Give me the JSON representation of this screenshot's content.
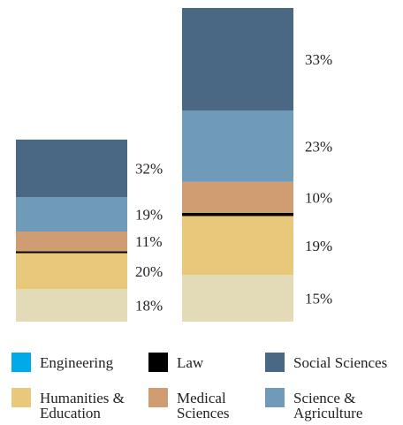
{
  "chart_data": {
    "type": "stacked_bar",
    "categories": [
      null,
      null
    ],
    "series": [
      {
        "name": null,
        "color": "#e3dab8",
        "values": [
          18,
          15
        ],
        "value_labels": [
          "18%",
          "15%"
        ]
      },
      {
        "name": "Humanities & Education",
        "color": "#e8c87a",
        "values": [
          20,
          19
        ],
        "value_labels": [
          "20%",
          "19%"
        ]
      },
      {
        "name": "Law",
        "color": "#000000",
        "values": [
          1,
          1
        ]
      },
      {
        "name": "Medical Sciences",
        "color": "#d09c72",
        "values": [
          11,
          10
        ],
        "value_labels": [
          "11%",
          "10%"
        ]
      },
      {
        "name": "Science & Agriculture",
        "color": "#6f9ab8",
        "values": [
          19,
          23
        ],
        "value_labels": [
          "19%",
          "23%"
        ]
      },
      {
        "name": "Social Sciences",
        "color": "#4a6784",
        "values": [
          32,
          33
        ],
        "value_labels": [
          "32%",
          "33%"
        ]
      },
      {
        "name": "Engineering",
        "color": "#00a9e8",
        "values": [
          0,
          0
        ]
      }
    ]
  }
}
